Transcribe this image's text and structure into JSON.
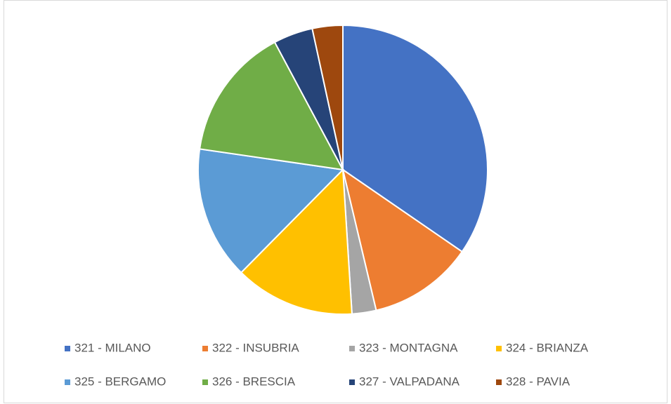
{
  "chart_data": {
    "type": "pie",
    "categories": [
      "321 - MILANO",
      "322 - INSUBRIA",
      "323 - MONTAGNA",
      "324 - BRIANZA",
      "325 - BERGAMO",
      "326 - BRESCIA",
      "327 - VALPADANA",
      "328 - PAVIA"
    ],
    "values": [
      34.6,
      11.7,
      2.7,
      13.4,
      14.9,
      14.9,
      4.4,
      3.4
    ],
    "colors": [
      "#4472c4",
      "#ed7d31",
      "#a5a5a5",
      "#ffc000",
      "#5b9bd5",
      "#70ad47",
      "#264478",
      "#9e480e"
    ],
    "legend": "bottom"
  }
}
